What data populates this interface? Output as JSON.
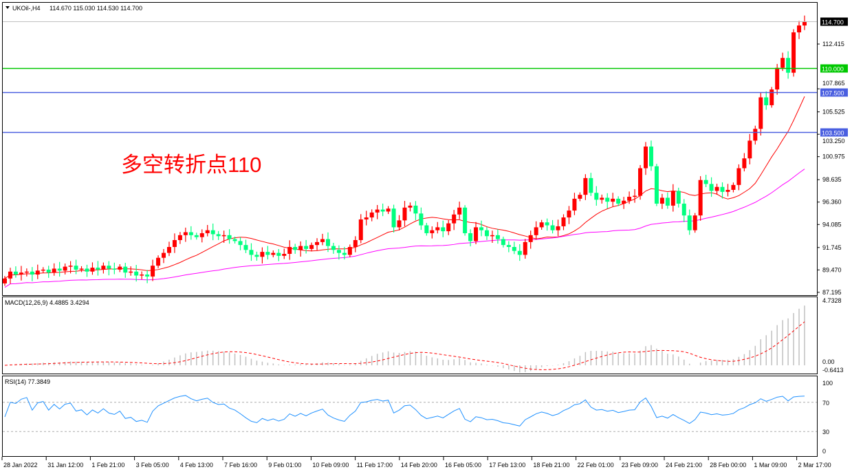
{
  "header": {
    "symbol": "UKOil-,H4",
    "ohlc": "114.670 115.030 114.530 114.700"
  },
  "annotation": {
    "text": "多空转折点110",
    "color": "#ff0000"
  },
  "colors": {
    "bull": "#ff0000",
    "bear": "#00ff7f",
    "ma_fast": "#ff0000",
    "ma_slow": "#ff00ff",
    "level_green": "#00c800",
    "level_blue": "#4a5fe0",
    "macd_hist": "#c0c0c0",
    "macd_signal": "#ff0000",
    "rsi": "#1e90ff"
  },
  "chart_data": [
    {
      "type": "candlestick",
      "title": "UKOil-,H4",
      "ylim": [
        87.195,
        114.7
      ],
      "y_ticks": [
        "112.415",
        "107.865",
        "105.525",
        "103.250",
        "100.975",
        "98.635",
        "96.360",
        "94.085",
        "91.745",
        "89.470",
        "87.195"
      ],
      "price_marks": [
        {
          "label": "114.700",
          "value": 114.7,
          "kind": "current",
          "color": "#000000"
        },
        {
          "label": "110.000",
          "value": 110.0,
          "kind": "hline",
          "color": "#00c800"
        },
        {
          "label": "107.500",
          "value": 107.5,
          "kind": "hline",
          "color": "#4a5fe0"
        },
        {
          "label": "103.500",
          "value": 103.5,
          "kind": "hline",
          "color": "#4a5fe0"
        }
      ],
      "x_ticks": [
        "28 Jan 2022",
        "31 Jan 12:00",
        "1 Feb 21:00",
        "3 Feb 05:00",
        "4 Feb 13:00",
        "7 Feb 16:00",
        "9 Feb 01:00",
        "10 Feb 09:00",
        "11 Feb 17:00",
        "14 Feb 20:00",
        "16 Feb 05:00",
        "17 Feb 13:00",
        "18 Feb 21:00",
        "22 Feb 01:00",
        "23 Feb 09:00",
        "24 Feb 21:00",
        "28 Feb 00:00",
        "1 Mar 09:00",
        "2 Mar 17:00"
      ],
      "close": [
        88.6,
        89.3,
        89.0,
        89.2,
        89.3,
        89.0,
        89.4,
        89.5,
        89.2,
        89.6,
        89.4,
        89.8,
        89.9,
        89.5,
        89.6,
        89.3,
        89.7,
        89.5,
        89.9,
        89.6,
        89.5,
        89.8,
        89.2,
        89.3,
        88.9,
        89.0,
        88.8,
        89.9,
        90.7,
        91.2,
        91.8,
        92.5,
        93.0,
        93.3,
        93.0,
        92.8,
        93.2,
        93.5,
        93.1,
        92.9,
        93.0,
        92.6,
        92.4,
        92.0,
        91.5,
        91.0,
        90.8,
        91.3,
        91.0,
        91.2,
        90.9,
        91.1,
        91.8,
        91.5,
        91.9,
        91.6,
        92.0,
        92.3,
        92.6,
        91.9,
        91.5,
        91.2,
        91.0,
        91.8,
        92.5,
        94.6,
        94.8,
        95.3,
        95.6,
        95.4,
        95.7,
        93.8,
        94.5,
        95.8,
        96.0,
        95.2,
        94.0,
        93.2,
        93.5,
        93.8,
        93.4,
        94.2,
        95.1,
        95.8,
        93.2,
        92.4,
        93.8,
        93.5,
        92.9,
        93.0,
        92.6,
        92.0,
        91.8,
        91.4,
        91.0,
        92.3,
        93.0,
        93.8,
        94.3,
        94.0,
        93.5,
        93.9,
        94.8,
        95.5,
        96.7,
        97.1,
        98.8,
        97.3,
        96.6,
        96.8,
        96.4,
        96.7,
        96.2,
        96.5,
        96.9,
        97.0,
        99.8,
        102.0,
        100.0,
        96.2,
        96.8,
        96.0,
        97.5,
        96.2,
        95.0,
        93.5,
        95.0,
        98.6,
        98.2,
        97.5,
        97.9,
        97.4,
        97.6,
        98.1,
        99.8,
        100.8,
        102.6,
        103.8,
        107.0,
        106.2,
        107.8,
        110.0,
        111.0,
        109.5,
        113.6,
        114.3,
        114.7
      ]
    },
    {
      "type": "bar+line",
      "title": "MACD(12,26,9) 4.4885 3.4294",
      "ylim": [
        -0.6413,
        4.7328
      ],
      "y_ticks": [
        "4.7328",
        "0.00",
        "-0.6413"
      ]
    },
    {
      "type": "line",
      "title": "RSI(14) 77.3849",
      "ylim": [
        0,
        100
      ],
      "y_ticks": [
        "100",
        "70",
        "30",
        "0"
      ],
      "levels": [
        70,
        30
      ]
    }
  ]
}
